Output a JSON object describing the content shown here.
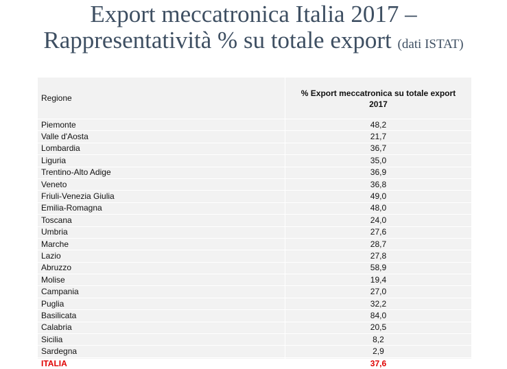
{
  "title": {
    "line1": "Export meccatronica Italia 2017 –",
    "line2": "Rappresentatività % su totale export",
    "source": "(dati ISTAT)"
  },
  "table": {
    "headers": {
      "region": "Regione",
      "value_line1": "% Export meccatronica su totale export",
      "value_line2": "2017"
    },
    "rows": [
      {
        "region": "Piemonte",
        "value": "48,2"
      },
      {
        "region": "Valle d'Aosta",
        "value": "21,7"
      },
      {
        "region": "Lombardia",
        "value": "36,7"
      },
      {
        "region": "Liguria",
        "value": "35,0"
      },
      {
        "region": "Trentino-Alto Adige",
        "value": "36,9"
      },
      {
        "region": "Veneto",
        "value": "36,8"
      },
      {
        "region": "Friuli-Venezia Giulia",
        "value": "49,0"
      },
      {
        "region": "Emilia-Romagna",
        "value": "48,0"
      },
      {
        "region": "Toscana",
        "value": "24,0"
      },
      {
        "region": "Umbria",
        "value": "27,6"
      },
      {
        "region": "Marche",
        "value": "28,7"
      },
      {
        "region": "Lazio",
        "value": "27,8"
      },
      {
        "region": "Abruzzo",
        "value": "58,9"
      },
      {
        "region": "Molise",
        "value": "19,4"
      },
      {
        "region": "Campania",
        "value": "27,0"
      },
      {
        "region": "Puglia",
        "value": "32,2"
      },
      {
        "region": "Basilicata",
        "value": "84,0"
      },
      {
        "region": "Calabria",
        "value": "20,5"
      },
      {
        "region": "Sicilia",
        "value": "8,2"
      },
      {
        "region": "Sardegna",
        "value": "2,9"
      }
    ],
    "total": {
      "region": "ITALIA",
      "value": "37,6"
    }
  },
  "colors": {
    "title": "#3e4f62",
    "table_background": "#f2f2f2",
    "total_highlight": "#e00000"
  }
}
